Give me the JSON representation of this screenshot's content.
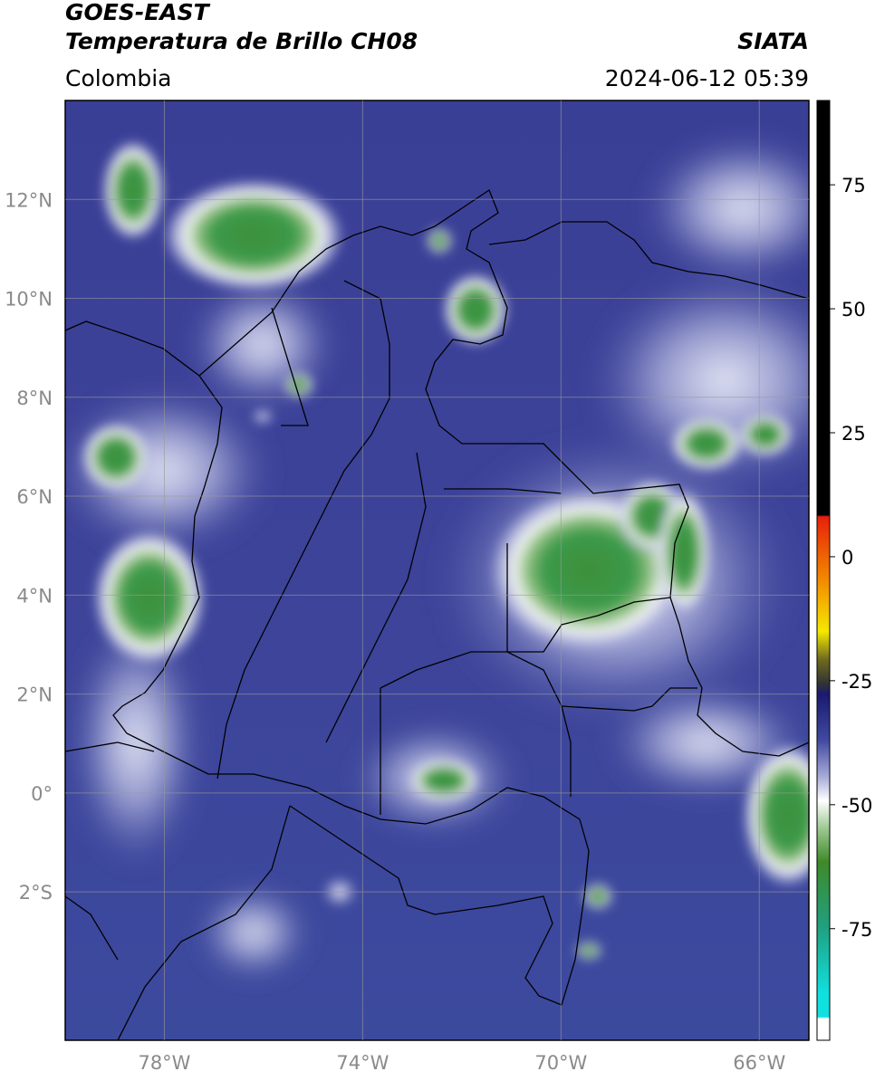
{
  "header": {
    "title": "GOES-EAST",
    "subtitle": "Temperatura de Brillo CH08",
    "source": "SIATA",
    "region": "Colombia",
    "datetime": "2024-06-12 05:39"
  },
  "map": {
    "lonlim": [
      -80,
      -65
    ],
    "latlim": [
      -5,
      14
    ],
    "grid": true,
    "lonticks": [
      {
        "value": -78,
        "label": "78°W"
      },
      {
        "value": -74,
        "label": "74°W"
      },
      {
        "value": -70,
        "label": "70°W"
      },
      {
        "value": -66,
        "label": "66°W"
      }
    ],
    "latticks": [
      {
        "value": 12,
        "label": "12°N"
      },
      {
        "value": 10,
        "label": "10°N"
      },
      {
        "value": 8,
        "label": "8°N"
      },
      {
        "value": 6,
        "label": "6°N"
      },
      {
        "value": 4,
        "label": "4°N"
      },
      {
        "value": 2,
        "label": "2°N"
      },
      {
        "value": 0,
        "label": "0°"
      },
      {
        "value": -2,
        "label": "2°S"
      }
    ]
  },
  "colorbar": {
    "lim": [
      -97.5,
      92
    ],
    "ticks": [
      75,
      50,
      25,
      0,
      -25,
      -50,
      -75
    ]
  }
}
